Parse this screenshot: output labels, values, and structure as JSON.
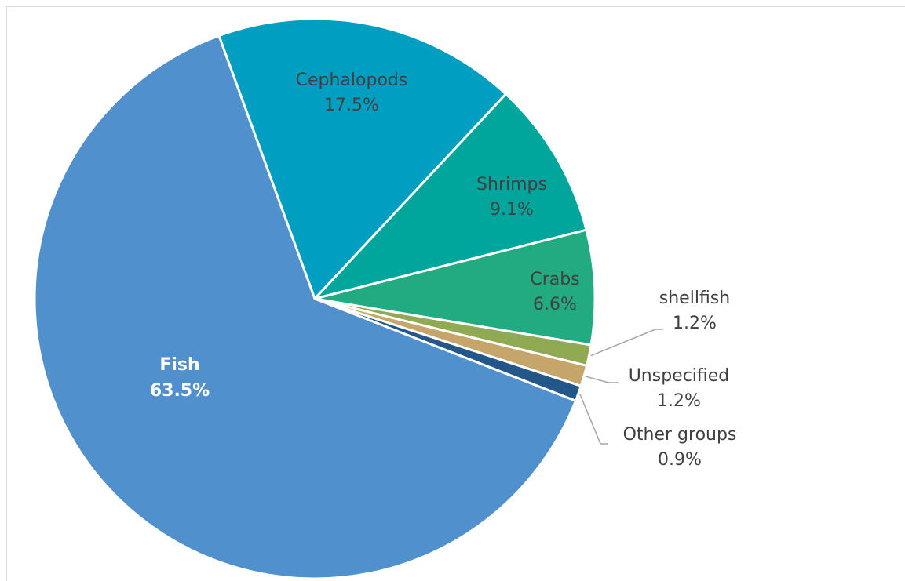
{
  "chart_data": {
    "type": "pie",
    "title": "",
    "start_angle_deg": 340,
    "slices": [
      {
        "label": "Cephalopods",
        "value_label": "17.5%",
        "value": 17.5,
        "color": "#009fc2"
      },
      {
        "label": "Shrimps",
        "value_label": "9.1%",
        "value": 9.1,
        "color": "#00a69c"
      },
      {
        "label": "Crabs",
        "value_label": "6.6%",
        "value": 6.6,
        "color": "#22ab80"
      },
      {
        "label": "shellfish",
        "value_label": "1.2%",
        "value": 1.2,
        "color": "#8faa52"
      },
      {
        "label": "Unspecified",
        "value_label": "1.2%",
        "value": 1.2,
        "color": "#c5a56a"
      },
      {
        "label": "Other groups",
        "value_label": "0.9%",
        "value": 0.9,
        "color": "#23578a"
      },
      {
        "label": "Fish",
        "value_label": "63.5%",
        "value": 63.5,
        "color": "#5090cd"
      }
    ],
    "leader_line_color": "#a6a6a6"
  }
}
